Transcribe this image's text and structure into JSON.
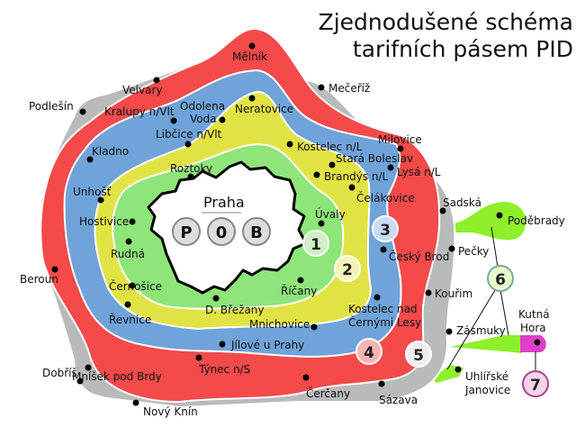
{
  "title": {
    "line1": "Zjednodušené schéma",
    "line2": "tarifních pásem PID"
  },
  "colors": {
    "zone_p": "#ffffff",
    "zone_1": "#8ee57a",
    "zone_2": "#e1e345",
    "zone_3": "#6fa3d9",
    "zone_4": "#f44a4a",
    "zone_5": "#b8bbba",
    "zone_6": "#8ef02a",
    "zone_7": "#e040c8"
  },
  "praha": {
    "label": "Praha",
    "zones": [
      "P",
      "0",
      "B"
    ]
  },
  "zones": [
    "1",
    "2",
    "3",
    "4",
    "5",
    "6",
    "7"
  ],
  "towns": {
    "melnik": "Mělník",
    "mecериz": "Mečeříž",
    "podlesin": "Podlešín",
    "velvary": "Velvary",
    "kralupy": "Kralupy n/Vlt",
    "odolena1": "Odolena",
    "odolena2": "Voda",
    "neratovice": "Neratovice",
    "libcice": "Libčice n/Vlt",
    "kostelec_nl": "Kostelec n/L",
    "milovice": "Milovice",
    "stara_boleslav": "Stará Boleslav",
    "lysa": "Lysá n/L",
    "brandys": "Brandýs n/L",
    "kladno": "Kladno",
    "roztoky": "Roztoky",
    "celakovice": "Čelákovice",
    "unhost": "Unhošť",
    "sadska": "Sadská",
    "podebrady": "Poděbrady",
    "uvaly": "Úvaly",
    "hostivice": "Hostivice",
    "rudna": "Rudná",
    "cesky_brod": "Český Brod",
    "pecky": "Pečky",
    "beroun": "Beroun",
    "kourim": "Kouřim",
    "cernosice": "Černošice",
    "ricany": "Říčany",
    "d_brezany": "D. Břežany",
    "revnice": "Řevnice",
    "kostelec_cl1": "Kostelec nad",
    "kostelec_cl2": "Černými Lesy",
    "mnichovice": "Mnichovice",
    "zasmuky": "Zásmuky",
    "kutna1": "Kutná",
    "kutna2": "Hora",
    "jilove": "Jílové u Prahy",
    "tynec": "Týnec n/S",
    "mnisek": "Mníšek pod Brdy",
    "dobris": "Dobříš",
    "uhlirske1": "Uhlířské",
    "uhlirske2": "Janovice",
    "cercany": "Čerčany",
    "sazava": "Sázava",
    "novy_knin": "Nový Knín"
  }
}
